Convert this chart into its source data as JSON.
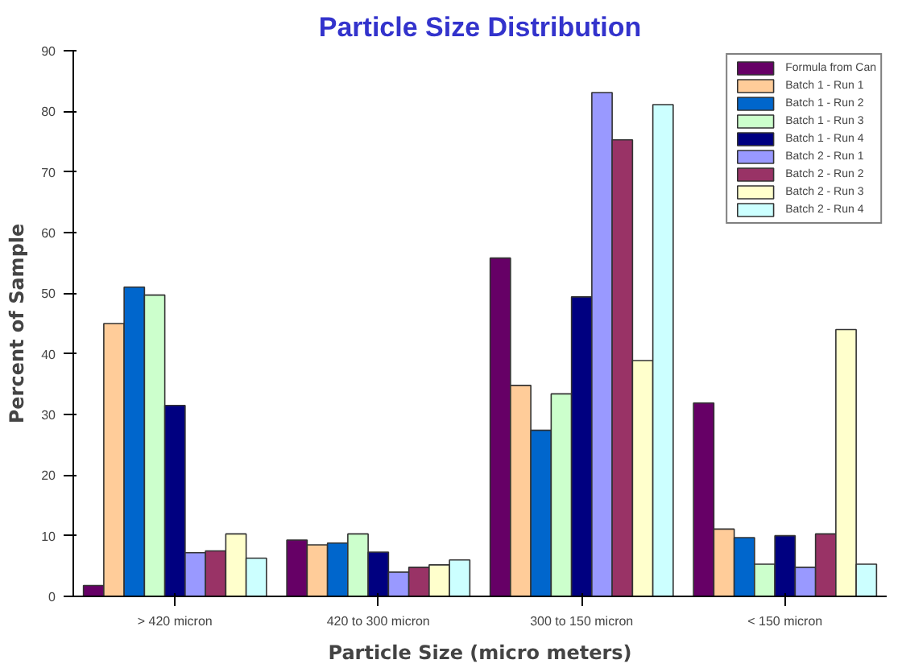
{
  "chart_data": {
    "type": "bar",
    "title": "Particle Size Distribution",
    "xlabel": "Particle Size (micro meters)",
    "ylabel": "Percent of Sample",
    "categories": [
      "> 420 micron",
      "420 to 300 micron",
      "300 to 150 micron",
      "< 150 micron"
    ],
    "ylim": [
      0,
      90
    ],
    "yticks": [
      0,
      10,
      20,
      30,
      40,
      50,
      60,
      70,
      80,
      90
    ],
    "grid": false,
    "legend": "top right",
    "series": [
      {
        "name": "Formula from Can",
        "color": "#660066",
        "values": [
          1.8,
          9.3,
          55.8,
          31.9
        ]
      },
      {
        "name": "Batch 1 - Run 1",
        "color": "#ffcc99",
        "values": [
          45,
          8.5,
          34.8,
          11.1
        ]
      },
      {
        "name": "Batch 1 - Run 2",
        "color": "#0066cc",
        "values": [
          51,
          8.8,
          27.4,
          9.7
        ]
      },
      {
        "name": "Batch 1 - Run 3",
        "color": "#ccffcc",
        "values": [
          49.7,
          10.3,
          33.4,
          5.3
        ]
      },
      {
        "name": "Batch 1 - Run 4",
        "color": "#000080",
        "values": [
          31.5,
          7.3,
          49.4,
          10
        ]
      },
      {
        "name": "Batch 2 - Run 1",
        "color": "#9999ff",
        "values": [
          7.2,
          4,
          83.1,
          4.8
        ]
      },
      {
        "name": "Batch 2 - Run 2",
        "color": "#993366",
        "values": [
          7.5,
          4.8,
          75.3,
          10.3
        ]
      },
      {
        "name": "Batch 2 - Run 3",
        "color": "#ffffcc",
        "values": [
          10.3,
          5.2,
          38.9,
          44
        ]
      },
      {
        "name": "Batch 2 - Run 4",
        "color": "#ccffff",
        "values": [
          6.3,
          6,
          81.1,
          5.3
        ]
      }
    ]
  }
}
